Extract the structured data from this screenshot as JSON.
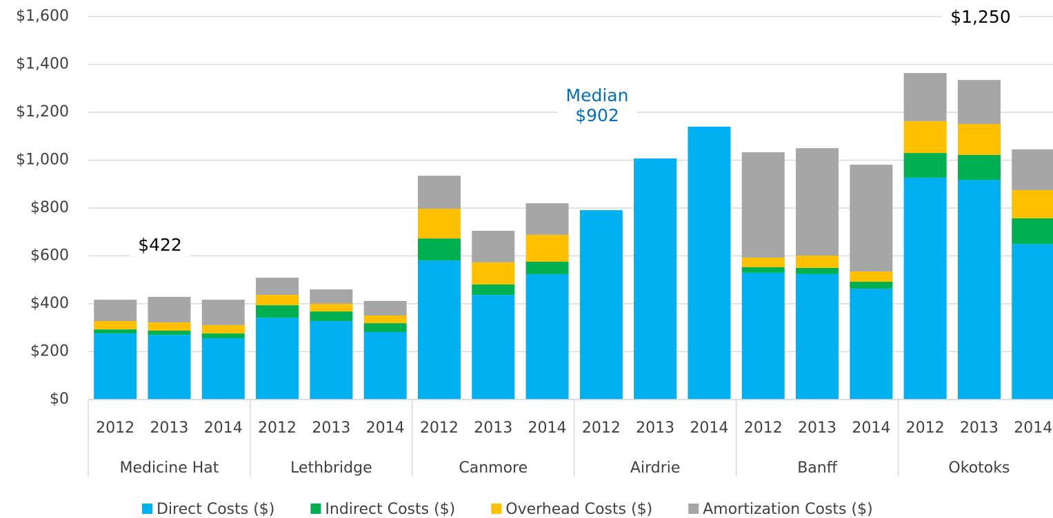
{
  "chart_data": {
    "type": "stacked_bar",
    "groups": [
      "Medicine Hat",
      "Lethbridge",
      "Canmore",
      "Airdrie",
      "Banff",
      "Okotoks"
    ],
    "categories": [
      "2012",
      "2013",
      "2014",
      "2012",
      "2013",
      "2014",
      "2012",
      "2013",
      "2014",
      "2012",
      "2013",
      "2014",
      "2012",
      "2013",
      "2014",
      "2012",
      "2013",
      "2014"
    ],
    "series": [
      {
        "name": "Direct Costs ($)",
        "color": "#00b0f0",
        "values": [
          276,
          270,
          256,
          342,
          328,
          282,
          581,
          437,
          524,
          791,
          1007,
          1140,
          530,
          524,
          463,
          927,
          918,
          650
        ]
      },
      {
        "name": "Indirect Costs ($)",
        "color": "#00b050",
        "values": [
          17,
          18,
          20,
          52,
          40,
          37,
          92,
          44,
          52,
          0,
          0,
          0,
          23,
          26,
          29,
          103,
          104,
          107
        ]
      },
      {
        "name": "Overhead Costs ($)",
        "color": "#ffc000",
        "values": [
          35,
          34,
          35,
          43,
          32,
          32,
          124,
          92,
          112,
          0,
          0,
          0,
          40,
          51,
          43,
          133,
          129,
          118
        ]
      },
      {
        "name": "Amortization Costs ($)",
        "color": "#a6a6a6",
        "values": [
          89,
          107,
          106,
          72,
          60,
          61,
          138,
          132,
          132,
          0,
          0,
          0,
          440,
          449,
          446,
          201,
          184,
          170
        ]
      }
    ],
    "ylim": [
      0,
      1600
    ],
    "yticks": [
      {
        "value": 0,
        "label": "$0"
      },
      {
        "value": 200,
        "label": "$200"
      },
      {
        "value": 400,
        "label": "$400"
      },
      {
        "value": 600,
        "label": "$600"
      },
      {
        "value": 800,
        "label": "$800"
      },
      {
        "value": 1000,
        "label": "$1,000"
      },
      {
        "value": 1200,
        "label": "$1,200"
      },
      {
        "value": 1400,
        "label": "$1,400"
      },
      {
        "value": 1600,
        "label": "$1,600"
      }
    ],
    "grid": true,
    "legend": "bottom",
    "annotations": [
      {
        "lines": [
          "$422"
        ],
        "color": "#000000"
      },
      {
        "lines": [
          "Median",
          "$902"
        ],
        "color": "#0070c0"
      },
      {
        "lines": [
          "$1,250"
        ],
        "color": "#000000"
      }
    ]
  }
}
